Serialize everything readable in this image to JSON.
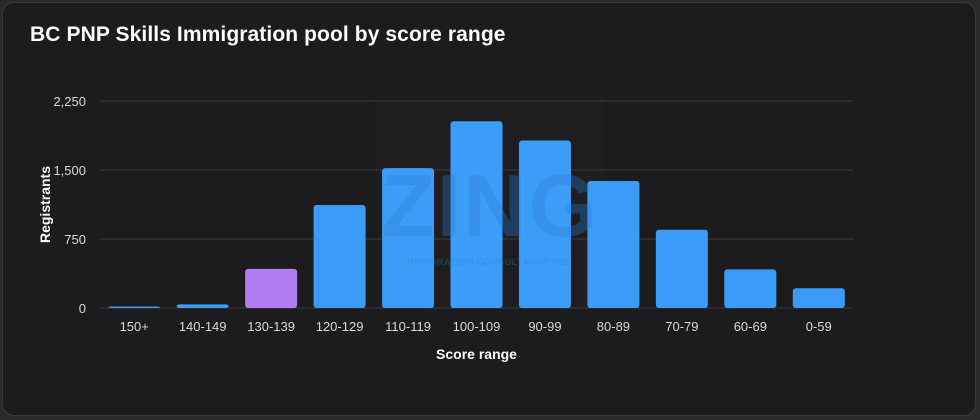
{
  "title": "BC PNP Skills Immigration pool by score range",
  "watermark": {
    "brand": "ZING",
    "tagline": "IMMIGRATION CONSULTANCY INC."
  },
  "chart_data": {
    "type": "bar",
    "title": "BC PNP Skills Immigration pool by score range",
    "xlabel": "Score range",
    "ylabel": "Registrants",
    "categories": [
      "150+",
      "140-149",
      "130-139",
      "120-129",
      "110-119",
      "100-109",
      "90-99",
      "80-89",
      "70-79",
      "60-69",
      "0-59"
    ],
    "values": [
      5,
      40,
      425,
      1120,
      1520,
      2030,
      1820,
      1380,
      850,
      420,
      215
    ],
    "highlight_index": 2,
    "colors": {
      "bar": "#3a9cf8",
      "highlight": "#b07cf2",
      "grid": "#3a3a3d"
    },
    "ylim": [
      0,
      2250
    ],
    "yticks": [
      0,
      750,
      1500,
      2250
    ],
    "ytick_labels": [
      "0",
      "750",
      "1,500",
      "2,250"
    ],
    "grid": true,
    "legend": "none"
  }
}
